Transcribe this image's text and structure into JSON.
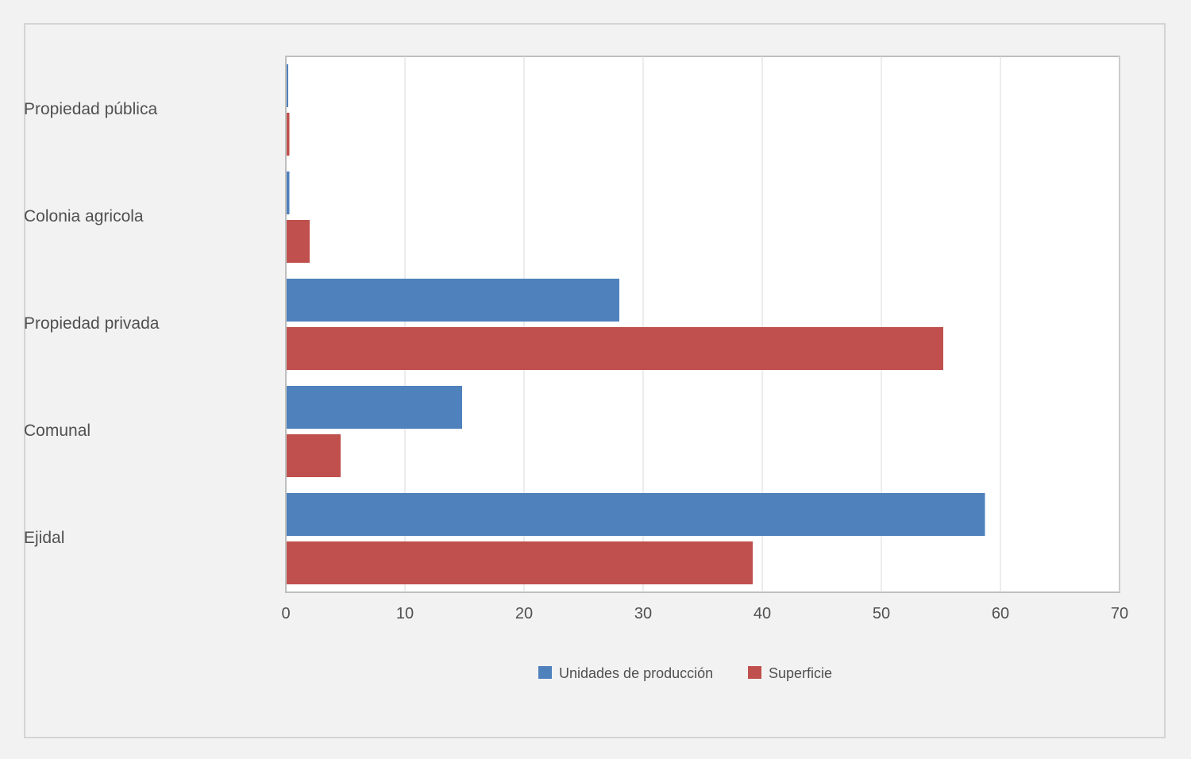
{
  "chart_data": {
    "type": "bar",
    "orientation": "horizontal",
    "categories": [
      "Propiedad pública",
      "Colonia agricola",
      "Propiedad privada",
      "Comunal",
      "Ejidal"
    ],
    "series": [
      {
        "name": "Unidades de producción",
        "color": "#4f81bd",
        "values": [
          0.2,
          0.3,
          28.0,
          14.8,
          58.7
        ]
      },
      {
        "name": "Superficie",
        "color": "#c0504d",
        "values": [
          0.3,
          2.0,
          55.2,
          4.6,
          39.2
        ]
      }
    ],
    "xlim": [
      0,
      70
    ],
    "x_ticks": [
      "0",
      "10",
      "20",
      "30",
      "40",
      "50",
      "60",
      "70"
    ],
    "x_tick_values": [
      0,
      10,
      20,
      30,
      40,
      50,
      60,
      70
    ],
    "grid": "vertical",
    "legend": "bottom"
  }
}
